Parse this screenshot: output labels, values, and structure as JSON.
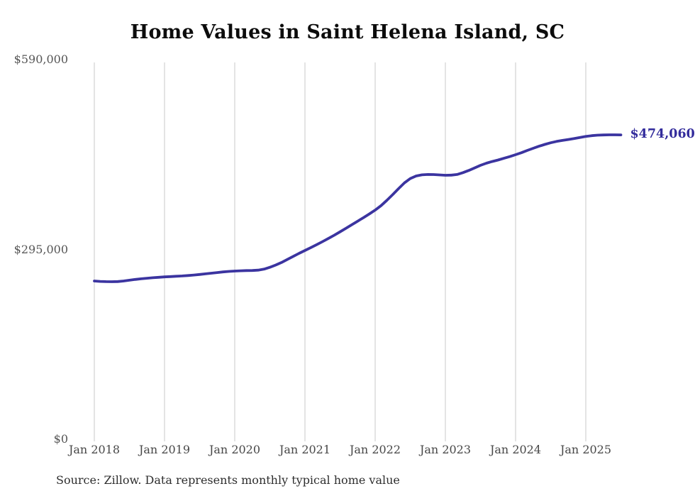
{
  "page": {
    "background_color": "#ffffff"
  },
  "header": {
    "title": "Home Values in Saint Helena Island, SC"
  },
  "footer": {
    "source_text": "Source: Zillow. Data represents monthly typical home value"
  },
  "chart_data": {
    "type": "line",
    "title": "Home Values in Saint Helena Island, SC",
    "xlabel": "",
    "ylabel": "",
    "grid": "vertical",
    "gridline_color": "#c9c9c9",
    "ylim": [
      0,
      590000
    ],
    "y_ticks_values": [
      590000,
      295000,
      0
    ],
    "y_tick_labels": [
      "$590,000",
      "$295,000",
      "$0"
    ],
    "x_tick_labels": [
      "Jan 2018",
      "Jan 2019",
      "Jan 2020",
      "Jan 2021",
      "Jan 2022",
      "Jan 2023",
      "Jan 2024",
      "Jan 2025"
    ],
    "x_start": "2018-01",
    "x_end": "2025-07",
    "x_frequency": "monthly",
    "last_value": 474060,
    "series": [
      {
        "name": "Typical home value",
        "color": "#3b34a0",
        "end_label": "$474,060",
        "values": [
          247000,
          246400,
          246000,
          245900,
          246200,
          247000,
          248200,
          249400,
          250400,
          251300,
          252100,
          252800,
          253400,
          253900,
          254400,
          254900,
          255500,
          256300,
          257200,
          258200,
          259200,
          260200,
          261100,
          261900,
          262500,
          262900,
          263200,
          263400,
          263900,
          265500,
          268300,
          271800,
          275800,
          280500,
          285300,
          290000,
          294500,
          299000,
          303500,
          308200,
          313100,
          318200,
          323500,
          329000,
          334500,
          340000,
          345500,
          351200,
          357200,
          364200,
          372400,
          381300,
          390600,
          399500,
          406300,
          410200,
          412000,
          412600,
          412400,
          411900,
          411400,
          411600,
          412600,
          415400,
          418900,
          422800,
          426800,
          430100,
          432700,
          435100,
          437700,
          440400,
          443300,
          446400,
          449900,
          453300,
          456400,
          459300,
          461900,
          463900,
          465500,
          466900,
          468400,
          470100,
          471800,
          472900,
          473600,
          474000,
          474200,
          474200,
          474060
        ]
      }
    ]
  }
}
